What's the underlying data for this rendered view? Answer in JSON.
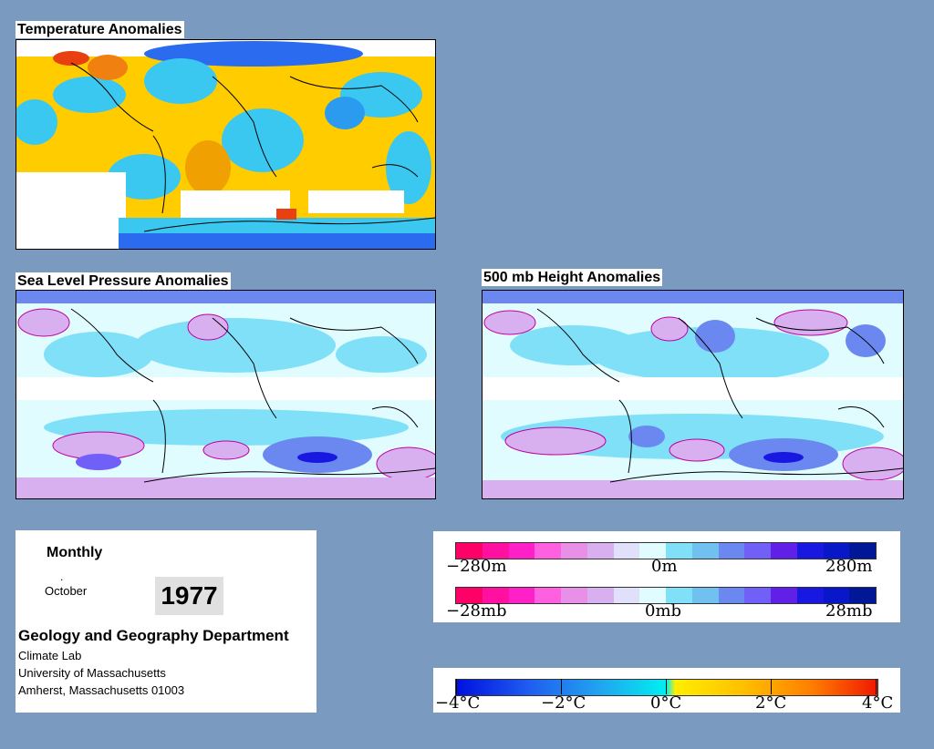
{
  "maps": {
    "temperature": {
      "title": "Temperature Anomalies"
    },
    "slp": {
      "title": "Sea Level Pressure Anomalies"
    },
    "height500": {
      "title": "500 mb Height Anomalies"
    }
  },
  "info": {
    "period": "Monthly",
    "dot": ".",
    "month": "October",
    "year": "1977",
    "department": "Geology and Geography Department",
    "lab": "Climate Lab",
    "university": "University of Massachusetts",
    "address": "Amherst, Massachusetts 01003"
  },
  "legend_height": {
    "min_label": "−280m",
    "mid_label": "0m",
    "max_label": "280m",
    "colors": [
      "#ff0066",
      "#ff10a0",
      "#ff20c8",
      "#ff60e0",
      "#e890e8",
      "#d8b0f0",
      "#e0e0fa",
      "#e0fcff",
      "#80e0f8",
      "#70c0f0",
      "#6a88f0",
      "#7060f8",
      "#6020e8",
      "#1818e0",
      "#0818c8",
      "#001898"
    ]
  },
  "legend_pressure": {
    "min_label": "−28mb",
    "mid_label": "0mb",
    "max_label": "28mb",
    "colors": [
      "#ff0066",
      "#ff10a0",
      "#ff20c8",
      "#ff60e0",
      "#e890e8",
      "#d8b0f0",
      "#e0e0fa",
      "#e0fcff",
      "#80e0f8",
      "#70c0f0",
      "#6a88f0",
      "#7060f8",
      "#6020e8",
      "#1818e0",
      "#0818c8",
      "#001898"
    ]
  },
  "legend_temperature": {
    "labels": [
      "−4°C",
      "−2°C",
      "0°C",
      "2°C",
      "4°C"
    ]
  },
  "colors": {
    "background": "#7b9abf",
    "warm": "#ffcc00",
    "cool": "#3bc8f0"
  }
}
